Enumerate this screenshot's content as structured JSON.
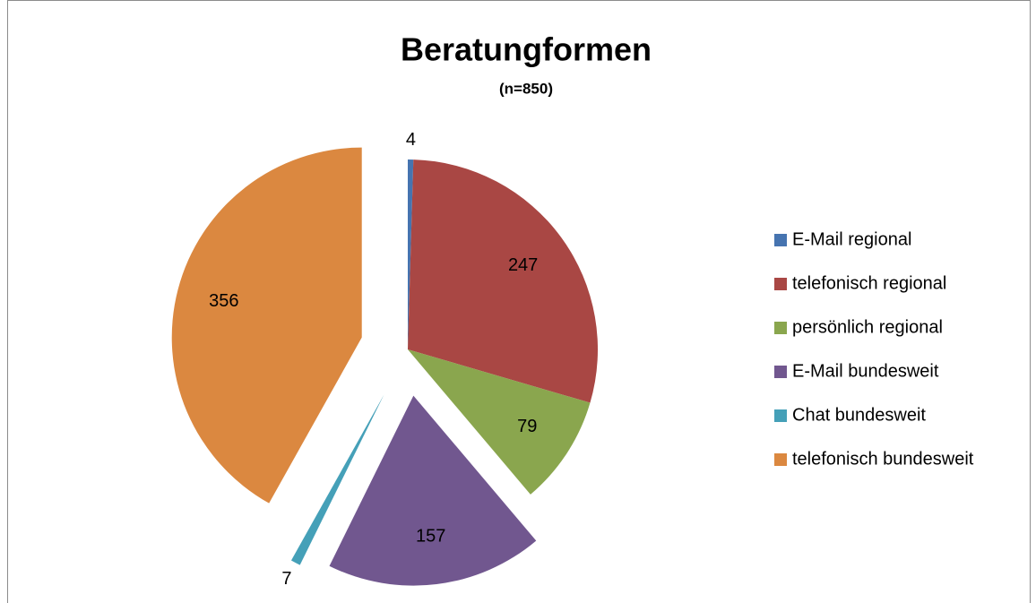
{
  "chart_data": {
    "type": "pie",
    "title": "Beratungformen",
    "subtitle": "(n=850)",
    "categories": [
      "E-Mail regional",
      "telefonisch regional",
      "persönlich regional",
      "E-Mail bundesweit",
      "Chat bundesweit",
      "telefonisch bundesweit"
    ],
    "values": [
      4,
      247,
      79,
      157,
      7,
      356
    ],
    "colors": [
      "#4674b0",
      "#a94744",
      "#8aa64e",
      "#71578f",
      "#45a0b8",
      "#db8840"
    ],
    "legend": "right"
  }
}
